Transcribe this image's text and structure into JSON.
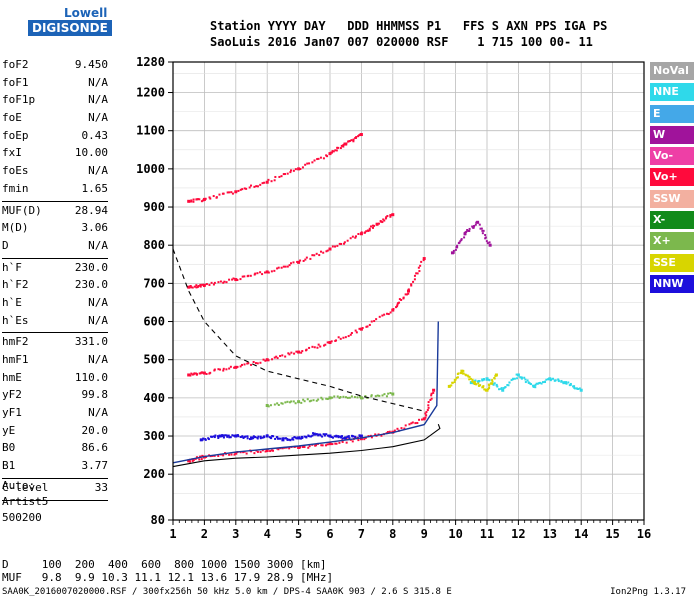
{
  "logo": {
    "line1": "Lowell",
    "line2": "DIGISONDE"
  },
  "header": {
    "line1": "Station YYYY DAY   DDD HHMMSS P1   FFS S AXN PPS IGA PS",
    "line2": "SaoLuis 2016 Jan07 007 020000 RSF    1 715 100 00- 11"
  },
  "params": {
    "g1": [
      {
        "name": "foF2",
        "value": "9.450"
      },
      {
        "name": "foF1",
        "value": "N/A"
      },
      {
        "name": "foF1p",
        "value": "N/A"
      },
      {
        "name": "foE",
        "value": "N/A"
      },
      {
        "name": "foEp",
        "value": "0.43"
      },
      {
        "name": "fxI",
        "value": "10.00"
      },
      {
        "name": "foEs",
        "value": "N/A"
      },
      {
        "name": "fmin",
        "value": "1.65"
      }
    ],
    "g2": [
      {
        "name": "MUF(D)",
        "value": "28.94"
      },
      {
        "name": "M(D)",
        "value": "3.06"
      },
      {
        "name": "D",
        "value": "N/A"
      }
    ],
    "g3": [
      {
        "name": "h`F",
        "value": "230.0"
      },
      {
        "name": "h`F2",
        "value": "230.0"
      },
      {
        "name": "h`E",
        "value": "N/A"
      },
      {
        "name": "h`Es",
        "value": "N/A"
      }
    ],
    "g4": [
      {
        "name": "hmF2",
        "value": "331.0"
      },
      {
        "name": "hmF1",
        "value": "N/A"
      },
      {
        "name": "hmE",
        "value": "110.0"
      },
      {
        "name": "yF2",
        "value": "99.8"
      },
      {
        "name": "yF1",
        "value": "N/A"
      },
      {
        "name": "yE",
        "value": "20.0"
      },
      {
        "name": "B0",
        "value": "86.6"
      },
      {
        "name": "B1",
        "value": "3.77"
      }
    ],
    "g5": [
      {
        "name": "C-level",
        "value": "33"
      }
    ]
  },
  "artist": {
    "line1": "Auto:",
    "line2": "Artist5",
    "line3": "500200"
  },
  "dtable": {
    "d_row": "D     100  200  400  600  800 1000 1500 3000 [km]",
    "muf_row": "MUF   9.8  9.9 10.3 11.1 12.1 13.6 17.9 28.9 [MHz]"
  },
  "footer": {
    "left": "SAA0K_2016007020000.RSF / 300fx256h 50 kHz 5.0 km / DPS-4 SAA0K 903 / 2.6 S 315.8 E",
    "right": "Ion2Png 1.3.17"
  },
  "legend": [
    {
      "label": "NoVal",
      "color": "#a6a6a6"
    },
    {
      "label": "NNE",
      "color": "#2fd9ea"
    },
    {
      "label": "E",
      "color": "#44a8e8"
    },
    {
      "label": "W",
      "color": "#a0139b"
    },
    {
      "label": "Vo-",
      "color": "#ee3fa6"
    },
    {
      "label": "Vo+",
      "color": "#ff0a3c"
    },
    {
      "label": "SSW",
      "color": "#f3b0a0"
    },
    {
      "label": "X-",
      "color": "#128a1a"
    },
    {
      "label": "X+",
      "color": "#7cb84d"
    },
    {
      "label": "SSE",
      "color": "#d8d500"
    },
    {
      "label": "NNW",
      "color": "#1d0fdc"
    }
  ],
  "chart_data": {
    "type": "scatter",
    "title": "",
    "xlabel": "",
    "ylabel": "",
    "xlim": [
      1,
      16
    ],
    "ylim": [
      80,
      1280
    ],
    "x_ticks": [
      1,
      2,
      3,
      4,
      5,
      6,
      7,
      8,
      9,
      10,
      11,
      12,
      13,
      14,
      15,
      16
    ],
    "y_ticks": [
      80,
      200,
      300,
      400,
      500,
      600,
      700,
      800,
      900,
      1000,
      1100,
      1200,
      1280
    ],
    "grid": true,
    "legend_placement": "right",
    "traces": [
      {
        "name": "NNW",
        "x": [
          1.9,
          2.5,
          3.0,
          3.5,
          4.0,
          4.5,
          5.0,
          5.5,
          6.0,
          6.5,
          7.0
        ],
        "y": [
          290,
          300,
          300,
          295,
          300,
          290,
          295,
          305,
          300,
          295,
          300
        ]
      },
      {
        "name": "NNE",
        "x": [
          10.5,
          11.0,
          11.5,
          12.0,
          12.5,
          13.0,
          13.5,
          14.0
        ],
        "y": [
          440,
          450,
          420,
          460,
          430,
          450,
          440,
          420
        ]
      },
      {
        "name": "Vo+",
        "x": [
          1.5,
          2.0,
          3.0,
          4.0,
          5.0,
          6.0,
          7.0,
          8.0,
          9.0,
          9.3
        ],
        "y": [
          235,
          245,
          255,
          262,
          270,
          280,
          293,
          310,
          345,
          420
        ]
      },
      {
        "name": "Vo+",
        "x": [
          1.5,
          2.0,
          3.0,
          4.0,
          5.0,
          6.0,
          7.0,
          8.0,
          8.5,
          9.0
        ],
        "y": [
          460,
          465,
          480,
          500,
          520,
          545,
          580,
          630,
          680,
          765
        ]
      },
      {
        "name": "Vo+",
        "x": [
          1.5,
          2.0,
          3.0,
          4.0,
          5.0,
          6.0,
          7.0,
          7.5,
          8.0
        ],
        "y": [
          690,
          695,
          710,
          730,
          755,
          790,
          830,
          855,
          880
        ]
      },
      {
        "name": "Vo+",
        "x": [
          1.5,
          2.0,
          3.0,
          4.0,
          5.0,
          6.0,
          6.5,
          7.0
        ],
        "y": [
          915,
          920,
          940,
          965,
          1000,
          1040,
          1065,
          1090
        ]
      },
      {
        "name": "X+",
        "x": [
          4.0,
          5.0,
          6.0,
          7.0,
          8.0
        ],
        "y": [
          380,
          390,
          400,
          400,
          410
        ]
      },
      {
        "name": "SSE",
        "x": [
          9.8,
          10.2,
          10.6,
          11.0,
          11.3
        ],
        "y": [
          430,
          470,
          440,
          420,
          460
        ]
      },
      {
        "name": "W",
        "x": [
          9.9,
          10.3,
          10.7,
          11.1
        ],
        "y": [
          780,
          830,
          860,
          800
        ]
      }
    ],
    "lines": [
      {
        "name": "profile",
        "x": [
          1.0,
          2.0,
          3.0,
          4.0,
          5.0,
          6.0,
          7.0,
          8.0,
          9.0,
          9.5,
          9.45
        ],
        "y": [
          220,
          235,
          242,
          245,
          250,
          255,
          262,
          272,
          290,
          320,
          331
        ]
      },
      {
        "name": "virtual-height",
        "x": [
          1.0,
          2.0,
          3.0,
          4.0,
          5.0,
          6.0,
          7.0,
          8.0,
          9.0,
          9.4,
          9.45
        ],
        "y": [
          230,
          246,
          258,
          266,
          274,
          284,
          295,
          309,
          330,
          380,
          600
        ]
      },
      {
        "name": "muf-dashed",
        "x": [
          1.0,
          1.5,
          2.0,
          3.0,
          4.0,
          5.0,
          6.0,
          7.0,
          8.0,
          9.0
        ],
        "y": [
          790,
          680,
          600,
          510,
          470,
          450,
          430,
          405,
          385,
          365
        ]
      }
    ]
  }
}
